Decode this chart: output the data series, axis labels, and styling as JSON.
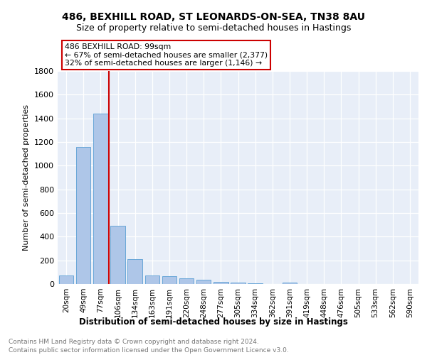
{
  "title": "486, BEXHILL ROAD, ST LEONARDS-ON-SEA, TN38 8AU",
  "subtitle": "Size of property relative to semi-detached houses in Hastings",
  "xlabel": "Distribution of semi-detached houses by size in Hastings",
  "ylabel": "Number of semi-detached properties",
  "bins": [
    "20sqm",
    "49sqm",
    "77sqm",
    "106sqm",
    "134sqm",
    "163sqm",
    "191sqm",
    "220sqm",
    "248sqm",
    "277sqm",
    "305sqm",
    "334sqm",
    "362sqm",
    "391sqm",
    "419sqm",
    "448sqm",
    "476sqm",
    "505sqm",
    "533sqm",
    "562sqm",
    "590sqm"
  ],
  "values": [
    75,
    1160,
    1440,
    490,
    210,
    75,
    65,
    50,
    35,
    20,
    12,
    5,
    3,
    15,
    2,
    1,
    1,
    0,
    0,
    0,
    0
  ],
  "bar_color": "#aec6e8",
  "bar_edge_color": "#5a9fd4",
  "vline_color": "#cc0000",
  "annotation_text": "486 BEXHILL ROAD: 99sqm\n← 67% of semi-detached houses are smaller (2,377)\n32% of semi-detached houses are larger (1,146) →",
  "annotation_box_color": "#cc0000",
  "ylim": [
    0,
    1800
  ],
  "yticks": [
    0,
    200,
    400,
    600,
    800,
    1000,
    1200,
    1400,
    1600,
    1800
  ],
  "footer_line1": "Contains HM Land Registry data © Crown copyright and database right 2024.",
  "footer_line2": "Contains public sector information licensed under the Open Government Licence v3.0.",
  "bg_color": "#e8eef8",
  "title_fontsize": 10,
  "subtitle_fontsize": 9
}
